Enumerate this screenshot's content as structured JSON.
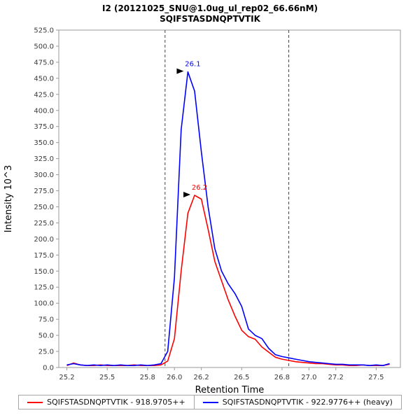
{
  "title": {
    "line1": "I2 (20121025_SNU@1.0ug_ul_rep02_66.66nM)",
    "line2": "SQIFSTASDNQPTVTIK"
  },
  "legend": {
    "items": [
      {
        "label": "SQIFSTASDNQPTVTIK - 918.9705++",
        "color": "#ff0000"
      },
      {
        "label": "SQIFSTASDNQPTVTIK - 922.9776++ (heavy)",
        "color": "#0000ff"
      }
    ]
  },
  "chart_data": {
    "type": "line",
    "title": "I2 (20121025_SNU@1.0ug_ul_rep02_66.66nM)",
    "subtitle": "SQIFSTASDNQPTVTIK",
    "xlabel": "Retention Time",
    "ylabel": "Intensity 10^3",
    "xlim": [
      25.14,
      27.68
    ],
    "ylim": [
      0,
      525
    ],
    "y_tick_step": 25,
    "x_ticks": [
      25.2,
      25.5,
      25.8,
      26.0,
      26.2,
      26.5,
      26.8,
      27.0,
      27.2,
      27.5
    ],
    "grid": false,
    "legend_position": "bottom",
    "boundaries": [
      25.93,
      26.85
    ],
    "x": [
      25.2,
      25.25,
      25.3,
      25.35,
      25.4,
      25.45,
      25.5,
      25.55,
      25.6,
      25.65,
      25.7,
      25.75,
      25.8,
      25.85,
      25.9,
      25.95,
      26.0,
      26.05,
      26.1,
      26.15,
      26.2,
      26.25,
      26.3,
      26.35,
      26.4,
      26.45,
      26.5,
      26.55,
      26.6,
      26.65,
      26.7,
      26.75,
      26.8,
      26.85,
      26.9,
      26.95,
      27.0,
      27.05,
      27.1,
      27.15,
      27.2,
      27.25,
      27.3,
      27.35,
      27.4,
      27.45,
      27.5,
      27.55,
      27.6
    ],
    "series": [
      {
        "name": "SQIFSTASDNQPTVTIK - 918.9705++",
        "color": "#ff0000",
        "values": [
          3,
          7,
          4,
          3,
          3,
          4,
          3,
          3,
          3,
          3,
          4,
          3,
          3,
          3,
          4,
          10,
          45,
          150,
          240,
          268,
          262,
          215,
          165,
          135,
          105,
          80,
          58,
          48,
          44,
          32,
          24,
          16,
          13,
          11,
          9,
          8,
          7,
          6,
          6,
          5,
          4,
          4,
          3,
          3,
          4,
          3,
          3,
          3,
          5
        ]
      },
      {
        "name": "SQIFSTASDNQPTVTIK - 922.9776++ (heavy)",
        "color": "#0000ff",
        "values": [
          4,
          6,
          4,
          3,
          4,
          3,
          4,
          3,
          4,
          3,
          3,
          4,
          3,
          4,
          6,
          25,
          140,
          370,
          460,
          430,
          335,
          250,
          185,
          150,
          130,
          115,
          95,
          60,
          50,
          45,
          30,
          20,
          17,
          15,
          13,
          11,
          9,
          8,
          7,
          6,
          5,
          5,
          4,
          4,
          4,
          3,
          4,
          3,
          6
        ]
      }
    ],
    "annotations": [
      {
        "series_index": 1,
        "label": "26.1"
      },
      {
        "series_index": 0,
        "label": "26.2"
      }
    ]
  }
}
